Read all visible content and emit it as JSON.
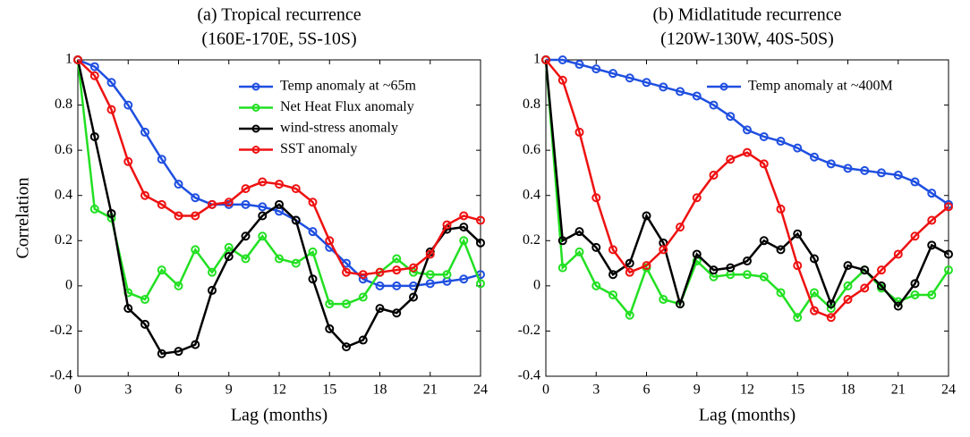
{
  "chart_data": [
    {
      "type": "line",
      "title": "(a) Tropical recurrence",
      "subtitle": "(160E-170E, 5S-10S)",
      "x_label": "Lag (months)",
      "y_label": "Correlation",
      "x": [
        0,
        1,
        2,
        3,
        4,
        5,
        6,
        7,
        8,
        9,
        10,
        11,
        12,
        13,
        14,
        15,
        16,
        17,
        18,
        19,
        20,
        21,
        22,
        23,
        24
      ],
      "xlim": [
        0,
        24
      ],
      "xticks": [
        0,
        3,
        6,
        9,
        12,
        15,
        18,
        21,
        24
      ],
      "ylim": [
        -0.4,
        1
      ],
      "yticks": [
        -0.4,
        -0.2,
        0,
        0.2,
        0.4,
        0.6,
        0.8,
        1
      ],
      "legend": "upper right",
      "series": [
        {
          "name": "Temp anomaly at ~65m",
          "color": "#1f4fe0",
          "values": [
            1,
            0.97,
            0.9,
            0.8,
            0.68,
            0.56,
            0.45,
            0.39,
            0.36,
            0.36,
            0.36,
            0.35,
            0.33,
            0.29,
            0.24,
            0.17,
            0.1,
            0.03,
            0,
            0,
            0,
            0.01,
            0.02,
            0.03,
            0.05
          ]
        },
        {
          "name": "Net Heat Flux anomaly",
          "color": "#22e022",
          "values": [
            1,
            0.34,
            0.3,
            -0.03,
            -0.06,
            0.07,
            0,
            0.16,
            0.06,
            0.17,
            0.12,
            0.22,
            0.12,
            0.1,
            0.15,
            -0.08,
            -0.08,
            -0.05,
            0.06,
            0.12,
            0.06,
            0.05,
            0.05,
            0.2,
            0.01
          ]
        },
        {
          "name": "wind-stress anomaly",
          "color": "#000000",
          "values": [
            1,
            0.66,
            0.32,
            -0.1,
            -0.17,
            -0.3,
            -0.29,
            -0.26,
            -0.02,
            0.13,
            0.22,
            0.31,
            0.36,
            0.29,
            0.03,
            -0.19,
            -0.27,
            -0.24,
            -0.1,
            -0.12,
            -0.05,
            0.15,
            0.25,
            0.26,
            0.19
          ]
        },
        {
          "name": "SST anomaly",
          "color": "#ee1111",
          "values": [
            1,
            0.93,
            0.78,
            0.55,
            0.4,
            0.36,
            0.31,
            0.31,
            0.36,
            0.37,
            0.43,
            0.46,
            0.45,
            0.43,
            0.37,
            0.2,
            0.06,
            0.05,
            0.06,
            0.07,
            0.08,
            0.14,
            0.27,
            0.31,
            0.29
          ]
        }
      ]
    },
    {
      "type": "line",
      "title": "(b) Midlatitude recurrence",
      "subtitle": "(120W-130W, 40S-50S)",
      "x_label": "Lag (months)",
      "x": [
        0,
        1,
        2,
        3,
        4,
        5,
        6,
        7,
        8,
        9,
        10,
        11,
        12,
        13,
        14,
        15,
        16,
        17,
        18,
        19,
        20,
        21,
        22,
        23,
        24
      ],
      "xlim": [
        0,
        24
      ],
      "xticks": [
        0,
        3,
        6,
        9,
        12,
        15,
        18,
        21,
        24
      ],
      "ylim": [
        -0.4,
        1
      ],
      "yticks": [
        -0.4,
        -0.2,
        0,
        0.2,
        0.4,
        0.6,
        0.8,
        1
      ],
      "legend": "upper right",
      "series": [
        {
          "name": "Temp anomaly at ~400M",
          "color": "#1f4fe0",
          "values": [
            1,
            1,
            0.98,
            0.96,
            0.94,
            0.92,
            0.9,
            0.88,
            0.86,
            0.84,
            0.8,
            0.75,
            0.69,
            0.66,
            0.64,
            0.61,
            0.57,
            0.54,
            0.52,
            0.51,
            0.5,
            0.49,
            0.46,
            0.41,
            0.36
          ]
        },
        {
          "color": "#22e022",
          "values": [
            1,
            0.08,
            0.15,
            0,
            -0.04,
            -0.13,
            0.08,
            -0.06,
            -0.08,
            0.11,
            0.04,
            0.05,
            0.05,
            0.04,
            -0.03,
            -0.14,
            -0.03,
            -0.1,
            0,
            0.07,
            -0.01,
            -0.07,
            -0.04,
            -0.04,
            0.07
          ]
        },
        {
          "color": "#000000",
          "values": [
            1,
            0.2,
            0.24,
            0.17,
            0.05,
            0.1,
            0.31,
            0.19,
            -0.08,
            0.14,
            0.07,
            0.08,
            0.11,
            0.2,
            0.16,
            0.23,
            0.12,
            -0.08,
            0.09,
            0.07,
            0,
            -0.09,
            0.01,
            0.18,
            0.14
          ]
        },
        {
          "color": "#ee1111",
          "values": [
            1,
            0.91,
            0.68,
            0.39,
            0.16,
            0.06,
            0.09,
            0.16,
            0.26,
            0.39,
            0.49,
            0.56,
            0.59,
            0.54,
            0.34,
            0.09,
            -0.11,
            -0.14,
            -0.06,
            -0.01,
            0.07,
            0.14,
            0.22,
            0.29,
            0.35
          ]
        }
      ]
    }
  ]
}
